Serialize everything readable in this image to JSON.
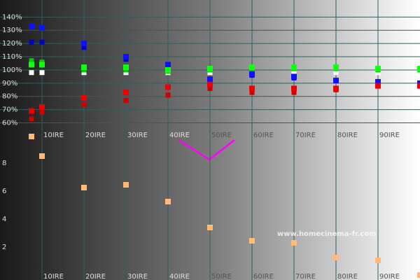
{
  "chart_data": [
    {
      "type": "line",
      "x": [
        7.5,
        10,
        20,
        30,
        40,
        50,
        60,
        70,
        80,
        90,
        100
      ],
      "xlim": [
        0,
        100
      ],
      "xticks": [
        {
          "value": 10,
          "label": "10IRE"
        },
        {
          "value": 20,
          "label": "20IRE"
        },
        {
          "value": 30,
          "label": "30IRE"
        },
        {
          "value": 40,
          "label": "40IRE"
        },
        {
          "value": 50,
          "label": "50IRE"
        },
        {
          "value": 60,
          "label": "60IRE"
        },
        {
          "value": 70,
          "label": "70IRE"
        },
        {
          "value": 80,
          "label": "80IRE"
        },
        {
          "value": 90,
          "label": "90IRE"
        }
      ],
      "ylim": [
        55,
        146
      ],
      "yticks": [
        {
          "value": 60,
          "label": "60%"
        },
        {
          "value": 70,
          "label": "70%"
        },
        {
          "value": 80,
          "label": "80%"
        },
        {
          "value": 90,
          "label": "90%"
        },
        {
          "value": 100,
          "label": "100%"
        },
        {
          "value": 110,
          "label": "110%"
        },
        {
          "value": 120,
          "label": "120%"
        },
        {
          "value": 130,
          "label": "130%"
        },
        {
          "value": 140,
          "label": "140%"
        }
      ],
      "grid": true,
      "series": [
        {
          "color": "#ffffff",
          "dash": true,
          "values": [
            98,
            98,
            98,
            98,
            98,
            98,
            98,
            98,
            98,
            98,
            98
          ]
        },
        {
          "color": "#0000cc",
          "dash": true,
          "values": [
            121,
            121,
            117,
            108,
            103,
            93,
            96,
            94,
            92,
            91,
            90
          ]
        },
        {
          "color": "#00cc00",
          "dash": true,
          "values": [
            107,
            106,
            100,
            100,
            99,
            100,
            101,
            101,
            101,
            100,
            100
          ]
        },
        {
          "color": "#cc0000",
          "dash": true,
          "values": [
            63,
            68,
            74,
            77,
            81,
            86,
            83,
            83,
            85,
            88,
            88
          ]
        },
        {
          "color": "#1010ff",
          "dash": false,
          "values": [
            133,
            132,
            120,
            110,
            104,
            93,
            97,
            95,
            92,
            91,
            90
          ]
        },
        {
          "color": "#11ff11",
          "dash": false,
          "values": [
            104,
            104,
            102,
            102,
            100,
            101,
            102,
            102,
            102,
            101,
            101
          ]
        },
        {
          "color": "#ee0000",
          "dash": false,
          "values": [
            69,
            72,
            79,
            83,
            87,
            89,
            86,
            86,
            86,
            88,
            88
          ]
        }
      ]
    },
    {
      "type": "line",
      "x": [
        7.5,
        10,
        20,
        30,
        40,
        50,
        60,
        70,
        80,
        90,
        100
      ],
      "xlim": [
        0,
        100
      ],
      "xticks": [
        {
          "value": 10,
          "label": "10IRE"
        },
        {
          "value": 20,
          "label": "20IRE"
        },
        {
          "value": 30,
          "label": "30IRE"
        },
        {
          "value": 40,
          "label": "40IRE"
        },
        {
          "value": 50,
          "label": "50IRE"
        },
        {
          "value": 60,
          "label": "60IRE"
        },
        {
          "value": 70,
          "label": "70IRE"
        },
        {
          "value": 80,
          "label": "80IRE"
        },
        {
          "value": 90,
          "label": "90IRE"
        }
      ],
      "ylim": [
        0,
        10.5
      ],
      "yticks": [
        2,
        4,
        6,
        8
      ],
      "grid": false,
      "watermark": "www.homecinema-fr.com",
      "series": [
        {
          "color": "#ffbb77",
          "dash": false,
          "values": [
            9.9,
            8.5,
            6.25,
            6.45,
            5.25,
            3.4,
            2.45,
            2.3,
            1.25,
            1.05,
            0
          ]
        }
      ]
    }
  ]
}
